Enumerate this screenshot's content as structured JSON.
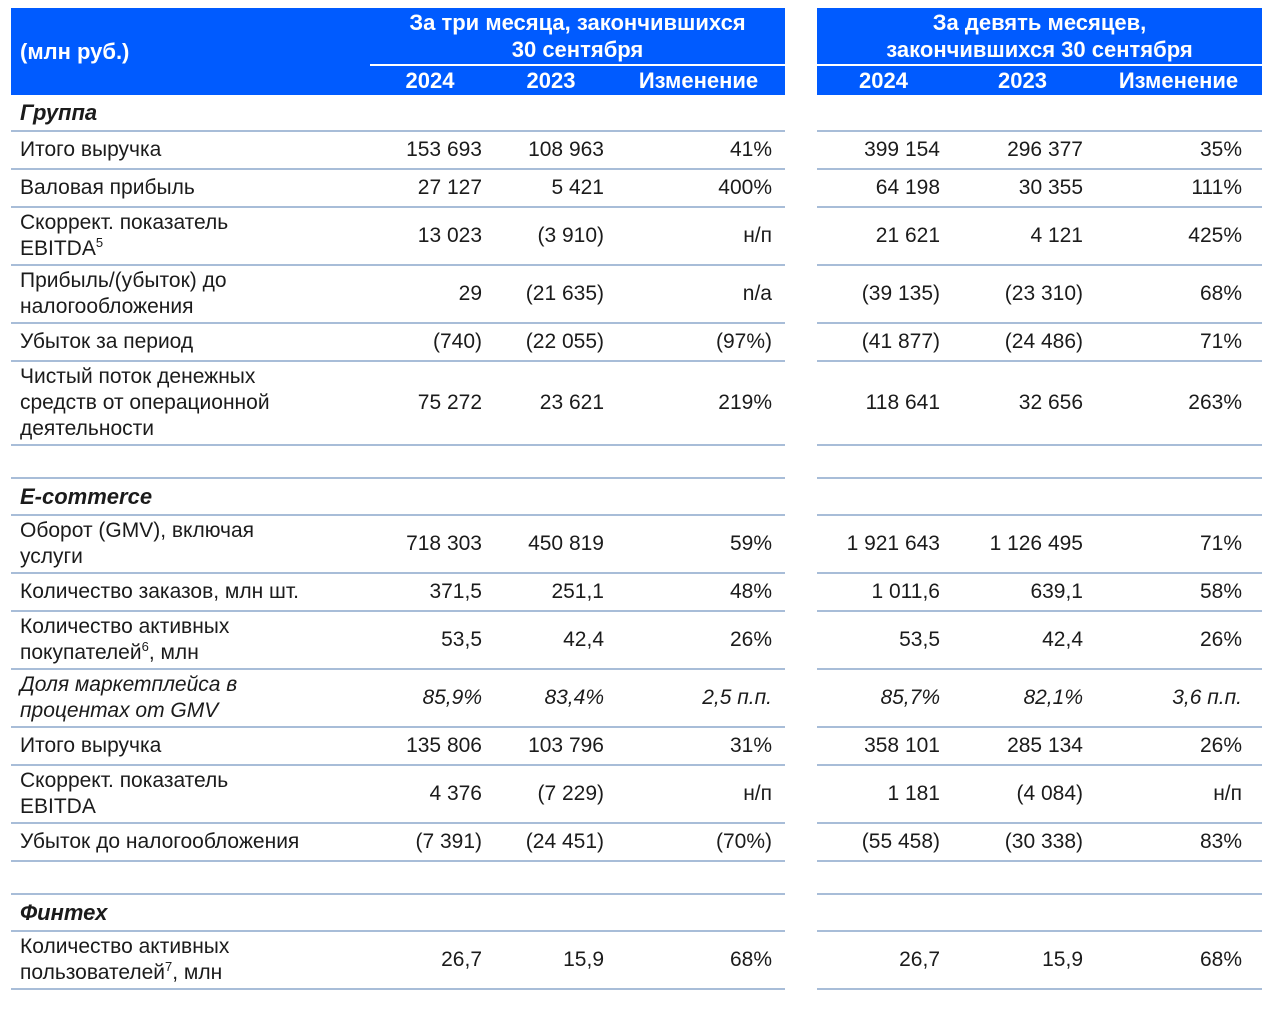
{
  "unit_label": "(млн руб.)",
  "columns": {
    "y2024": "2024",
    "y2023": "2023",
    "change": "Изменение"
  },
  "group_q3": {
    "title_lines": [
      "За три месяца, закончившихся",
      "30 сентября"
    ]
  },
  "group_9m": {
    "title_lines": [
      "За девять месяцев,",
      "закончившихся 30 сентября"
    ]
  },
  "colors": {
    "header_bg": "#005BFF",
    "header_text": "#FFFFFF",
    "row_line": "#A8BDD8",
    "text": "#1B1B1B"
  },
  "rows": [
    {
      "type": "section",
      "label": [
        {
          "t": "Группа"
        }
      ]
    },
    {
      "type": "data",
      "label": [
        {
          "t": "Итого выручка"
        }
      ],
      "values": [
        "153 693",
        "108 963",
        "41%",
        "399 154",
        "296 377",
        "35%"
      ]
    },
    {
      "type": "data",
      "label": [
        {
          "t": "Валовая прибыль"
        }
      ],
      "values": [
        "27 127",
        "5 421",
        "400%",
        "64 198",
        "30 355",
        "111%"
      ]
    },
    {
      "type": "data",
      "label": [
        {
          "t": "Скоррект. показатель"
        },
        {
          "br": true
        },
        {
          "t": "EBITDA"
        },
        {
          "t": "5",
          "sup": true
        }
      ],
      "values": [
        "13 023",
        "(3 910)",
        "н/п",
        "21 621",
        "4 121",
        "425%"
      ]
    },
    {
      "type": "data",
      "label": [
        {
          "t": "Прибыль/(убыток) до"
        },
        {
          "br": true
        },
        {
          "t": "налогообложения"
        }
      ],
      "values": [
        "29",
        "(21 635)",
        "n/a",
        "(39 135)",
        "(23 310)",
        "68%"
      ]
    },
    {
      "type": "data",
      "label": [
        {
          "t": "Убыток за период"
        }
      ],
      "values": [
        "(740)",
        "(22 055)",
        "(97%)",
        "(41 877)",
        "(24 486)",
        "71%"
      ]
    },
    {
      "type": "data",
      "label": [
        {
          "t": "Чистый поток денежных"
        },
        {
          "br": true
        },
        {
          "t": "средств от операционной"
        },
        {
          "br": true
        },
        {
          "t": "деятельности"
        }
      ],
      "values": [
        "75 272",
        "23 621",
        "219%",
        "118 641",
        "32 656",
        "263%"
      ]
    },
    {
      "type": "spacer"
    },
    {
      "type": "section",
      "label": [
        {
          "t": "E-commerce"
        }
      ]
    },
    {
      "type": "data",
      "label": [
        {
          "t": "Оборот (GMV), включая"
        },
        {
          "br": true
        },
        {
          "t": "услуги"
        }
      ],
      "values": [
        "718 303",
        "450 819",
        "59%",
        "1 921 643",
        "1 126 495",
        "71%"
      ]
    },
    {
      "type": "data",
      "label": [
        {
          "t": "Количество заказов, млн шт."
        }
      ],
      "values": [
        "371,5",
        "251,1",
        "48%",
        "1 011,6",
        "639,1",
        "58%"
      ]
    },
    {
      "type": "data",
      "label": [
        {
          "t": "Количество активных"
        },
        {
          "br": true
        },
        {
          "t": "покупателей"
        },
        {
          "t": "6",
          "sup": true
        },
        {
          "t": ", млн"
        }
      ],
      "values": [
        "53,5",
        "42,4",
        "26%",
        "53,5",
        "42,4",
        "26%"
      ]
    },
    {
      "type": "data",
      "italic": true,
      "label": [
        {
          "t": "Доля маркетплейса в"
        },
        {
          "br": true
        },
        {
          "t": "процентах от GMV"
        }
      ],
      "values": [
        "85,9%",
        "83,4%",
        "2,5 п.п.",
        "85,7%",
        "82,1%",
        "3,6 п.п."
      ]
    },
    {
      "type": "data",
      "label": [
        {
          "t": "Итого выручка"
        }
      ],
      "values": [
        "135 806",
        "103 796",
        "31%",
        "358 101",
        "285 134",
        "26%"
      ]
    },
    {
      "type": "data",
      "label": [
        {
          "t": "Скоррект. показатель"
        },
        {
          "br": true
        },
        {
          "t": "EBITDA"
        }
      ],
      "values": [
        "4 376",
        "(7 229)",
        "н/п",
        "1 181",
        "(4 084)",
        "н/п"
      ]
    },
    {
      "type": "data",
      "label": [
        {
          "t": "Убыток до налогообложения"
        }
      ],
      "values": [
        "(7 391)",
        "(24 451)",
        "(70%)",
        "(55 458)",
        "(30 338)",
        "83%"
      ]
    },
    {
      "type": "spacer"
    },
    {
      "type": "section",
      "label": [
        {
          "t": "Финтех"
        }
      ]
    },
    {
      "type": "data",
      "label": [
        {
          "t": "Количество активных"
        },
        {
          "br": true
        },
        {
          "t": "пользователей"
        },
        {
          "t": "7",
          "sup": true
        },
        {
          "t": ", млн"
        }
      ],
      "values": [
        "26,7",
        "15,9",
        "68%",
        "26,7",
        "15,9",
        "68%"
      ]
    }
  ]
}
